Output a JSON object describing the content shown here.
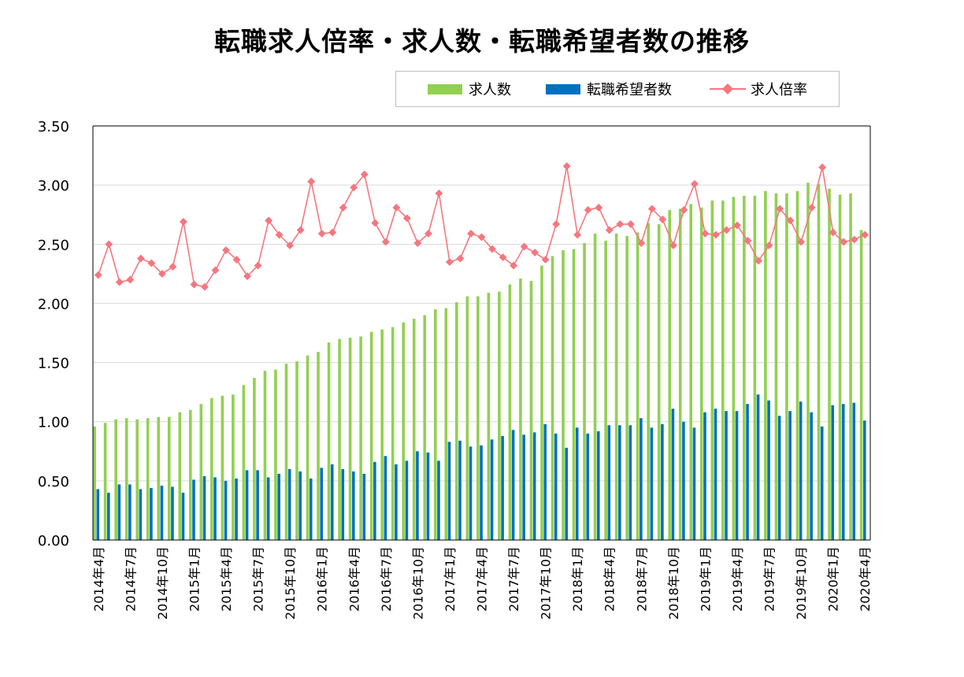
{
  "chart_data": {
    "type": "bar",
    "title": "転職求人倍率・求人数・転職希望者数の推移",
    "legend": {
      "position": "top-right",
      "items": [
        {
          "key": "jobs",
          "label": "求人数",
          "kind": "bar",
          "color": "#92d050"
        },
        {
          "key": "seekers",
          "label": "転職希望者数",
          "kind": "bar",
          "color": "#0070c0"
        },
        {
          "key": "ratio",
          "label": "求人倍率",
          "kind": "line",
          "color": "#f4777f"
        }
      ]
    },
    "ylim": [
      0,
      3.5
    ],
    "y_ticks": [
      "0.00",
      "0.50",
      "1.00",
      "1.50",
      "2.00",
      "2.50",
      "3.00",
      "3.50"
    ],
    "grid": true,
    "x_tick_labels": [
      "2014年4月",
      "2014年7月",
      "2014年10月",
      "2015年1月",
      "2015年4月",
      "2015年7月",
      "2015年10月",
      "2016年1月",
      "2016年4月",
      "2016年7月",
      "2016年10月",
      "2017年1月",
      "2017年4月",
      "2017年7月",
      "2017年10月",
      "2018年1月",
      "2018年4月",
      "2018年7月",
      "2018年10月",
      "2019年1月",
      "2019年4月",
      "2019年7月",
      "2019年10月",
      "2020年1月",
      "2020年4月"
    ],
    "x_tick_every": 3,
    "series": [
      {
        "name": "求人数",
        "key": "jobs",
        "type": "bar",
        "color": "#92d050",
        "values": [
          0.96,
          0.99,
          1.02,
          1.03,
          1.02,
          1.03,
          1.04,
          1.04,
          1.08,
          1.1,
          1.15,
          1.2,
          1.22,
          1.23,
          1.31,
          1.37,
          1.43,
          1.44,
          1.49,
          1.51,
          1.56,
          1.59,
          1.67,
          1.7,
          1.71,
          1.72,
          1.76,
          1.78,
          1.8,
          1.84,
          1.87,
          1.9,
          1.95,
          1.96,
          2.01,
          2.06,
          2.06,
          2.09,
          2.1,
          2.16,
          2.21,
          2.19,
          2.32,
          2.4,
          2.45,
          2.46,
          2.51,
          2.59,
          2.53,
          2.59,
          2.57,
          2.6,
          2.68,
          2.67,
          2.79,
          2.8,
          2.84,
          2.81,
          2.87,
          2.87,
          2.9,
          2.91,
          2.91,
          2.95,
          2.93,
          2.93,
          2.95,
          3.02,
          3.01,
          2.97,
          2.92,
          2.93,
          2.62
        ]
      },
      {
        "name": "転職希望者数",
        "key": "seekers",
        "type": "bar",
        "color": "#0070c0",
        "values": [
          0.43,
          0.4,
          0.47,
          0.47,
          0.43,
          0.44,
          0.46,
          0.45,
          0.4,
          0.51,
          0.54,
          0.53,
          0.5,
          0.52,
          0.59,
          0.59,
          0.53,
          0.56,
          0.6,
          0.58,
          0.52,
          0.61,
          0.64,
          0.6,
          0.58,
          0.56,
          0.66,
          0.71,
          0.64,
          0.67,
          0.75,
          0.74,
          0.67,
          0.83,
          0.84,
          0.79,
          0.8,
          0.85,
          0.88,
          0.93,
          0.89,
          0.91,
          0.98,
          0.9,
          0.78,
          0.95,
          0.9,
          0.92,
          0.97,
          0.97,
          0.97,
          1.03,
          0.95,
          0.98,
          1.11,
          1.0,
          0.95,
          1.08,
          1.11,
          1.09,
          1.09,
          1.15,
          1.23,
          1.18,
          1.05,
          1.09,
          1.17,
          1.08,
          0.96,
          1.14,
          1.15,
          1.16,
          1.01
        ]
      },
      {
        "name": "求人倍率",
        "key": "ratio",
        "type": "line",
        "color": "#f4777f",
        "values": [
          2.24,
          2.5,
          2.18,
          2.2,
          2.38,
          2.34,
          2.25,
          2.31,
          2.69,
          2.16,
          2.14,
          2.28,
          2.45,
          2.37,
          2.23,
          2.32,
          2.7,
          2.58,
          2.49,
          2.62,
          3.03,
          2.59,
          2.6,
          2.81,
          2.98,
          3.09,
          2.68,
          2.52,
          2.81,
          2.72,
          2.51,
          2.59,
          2.93,
          2.35,
          2.38,
          2.59,
          2.56,
          2.46,
          2.39,
          2.32,
          2.48,
          2.43,
          2.37,
          2.67,
          3.16,
          2.58,
          2.79,
          2.81,
          2.62,
          2.67,
          2.67,
          2.51,
          2.8,
          2.71,
          2.49,
          2.79,
          3.01,
          2.59,
          2.58,
          2.62,
          2.66,
          2.53,
          2.36,
          2.49,
          2.8,
          2.7,
          2.52,
          2.81,
          3.15,
          2.6,
          2.52,
          2.54,
          2.58
        ]
      }
    ]
  }
}
